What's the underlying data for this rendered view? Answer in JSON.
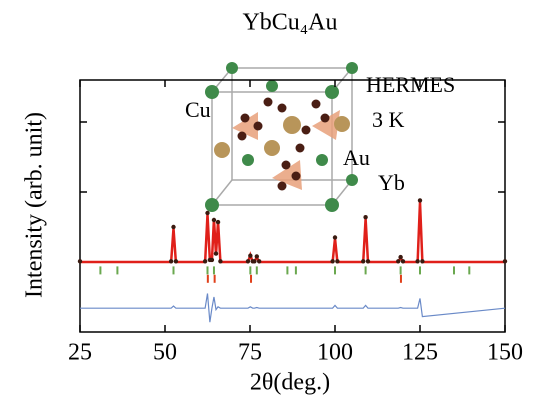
{
  "chart_data": {
    "type": "line",
    "title": "YbCu₄Au",
    "xlabel": "2θ(deg.)",
    "ylabel": "Intensity (arb. unit)",
    "annotations": [
      {
        "text": "HERMES",
        "color": "#000000"
      },
      {
        "text": "3 K",
        "color": "#000000"
      },
      {
        "text": "Cu",
        "color": "#9a5a48"
      },
      {
        "text": "Au",
        "color": "#b89a6a"
      },
      {
        "text": "Yb",
        "color": "#6aa04f"
      }
    ],
    "xlim": [
      25,
      150
    ],
    "xticks": [
      25,
      50,
      75,
      100,
      125,
      150
    ],
    "ylim": [
      -1,
      2.6
    ],
    "yticks": [
      0,
      1,
      2
    ],
    "x": [
      25,
      51.8,
      52.5,
      53.2,
      61.8,
      62.5,
      63.2,
      63.8,
      64.4,
      65.0,
      65.6,
      66.3,
      74.4,
      75.1,
      75.8,
      76.3,
      77.0,
      77.7,
      99.3,
      100,
      100.7,
      108.3,
      109,
      109.7,
      118.6,
      119.3,
      120,
      124.3,
      125,
      125.7,
      150
    ],
    "series": [
      {
        "style": "line",
        "color": "#e0201a",
        "values": [
          0,
          0,
          0.48,
          0,
          0,
          0.68,
          0.02,
          0.02,
          0.62,
          0.1,
          0.58,
          0,
          0,
          0.1,
          0,
          0,
          0.07,
          0,
          0,
          0.34,
          0,
          0,
          0.62,
          0,
          0,
          0.06,
          0,
          0,
          0.86,
          0,
          0
        ]
      },
      {
        "style": "dots",
        "color": "#3a1a10",
        "values": [
          0.01,
          0.01,
          0.5,
          0.01,
          0.01,
          0.7,
          0.03,
          0.03,
          0.6,
          0.12,
          0.57,
          0.01,
          0.01,
          0.09,
          0.01,
          0.01,
          0.08,
          0.01,
          0.01,
          0.35,
          0.01,
          0.01,
          0.64,
          0.01,
          0.01,
          0.07,
          0.01,
          0.01,
          0.88,
          0.01,
          0.01
        ]
      },
      {
        "style": "line",
        "color": "#6a8ac8",
        "values": [
          -0.66,
          -0.66,
          -0.63,
          -0.66,
          -0.66,
          -0.45,
          -0.86,
          -0.66,
          -0.5,
          -0.68,
          -0.64,
          -0.66,
          -0.66,
          -0.64,
          -0.66,
          -0.66,
          -0.65,
          -0.66,
          -0.66,
          -0.62,
          -0.66,
          -0.66,
          -0.62,
          -0.66,
          -0.66,
          -0.65,
          -0.66,
          -0.66,
          -0.52,
          -0.78,
          -0.66
        ]
      }
    ],
    "reflections": [
      {
        "color": "#6aa84f",
        "level": -0.12,
        "x": [
          31,
          36,
          52.5,
          62.5,
          64.4,
          75.1,
          77,
          86,
          88.5,
          100,
          109,
          119.3,
          125,
          135,
          139.5
        ]
      },
      {
        "color": "#e0401a",
        "level": -0.24,
        "x": [
          62.6,
          64.6,
          75.3,
          119.4
        ]
      }
    ]
  }
}
